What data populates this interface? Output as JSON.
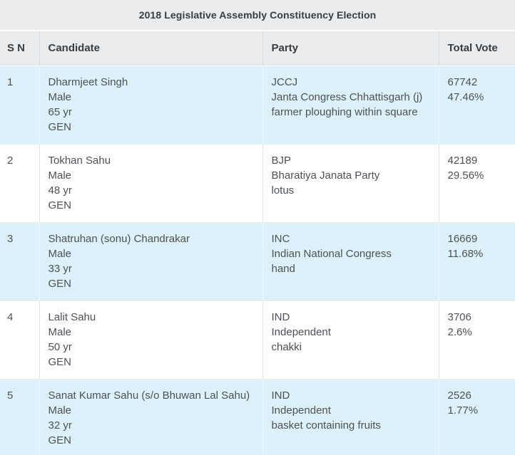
{
  "title": "2018 Legislative Assembly Constituency Election",
  "columns": {
    "sn": "S N",
    "candidate": "Candidate",
    "party": "Party",
    "total_vote": "Total Vote"
  },
  "colors": {
    "header_bg": "#e9ebed",
    "header_text": "#383d43",
    "body_text": "#4c5157",
    "highlight_row_bg": "#ddf1fb"
  },
  "rows": [
    {
      "sn": "1",
      "candidate": {
        "name": "Dharmjeet Singh",
        "gender": "Male",
        "age": "65 yr",
        "category": "GEN"
      },
      "party": {
        "abbr": "JCCJ",
        "name": "Janta Congress Chhattisgarh (j)",
        "symbol": "farmer ploughing within square"
      },
      "vote": {
        "total": "67742",
        "percent": "47.46%"
      }
    },
    {
      "sn": "2",
      "candidate": {
        "name": "Tokhan Sahu",
        "gender": "Male",
        "age": "48 yr",
        "category": "GEN"
      },
      "party": {
        "abbr": "BJP",
        "name": "Bharatiya Janata Party",
        "symbol": "lotus"
      },
      "vote": {
        "total": "42189",
        "percent": "29.56%"
      }
    },
    {
      "sn": "3",
      "candidate": {
        "name": "Shatruhan (sonu) Chandrakar",
        "gender": "Male",
        "age": "33 yr",
        "category": "GEN"
      },
      "party": {
        "abbr": "INC",
        "name": "Indian National Congress",
        "symbol": "hand"
      },
      "vote": {
        "total": "16669",
        "percent": "11.68%"
      }
    },
    {
      "sn": "4",
      "candidate": {
        "name": "Lalit Sahu",
        "gender": "Male",
        "age": "50 yr",
        "category": "GEN"
      },
      "party": {
        "abbr": "IND",
        "name": "Independent",
        "symbol": "chakki"
      },
      "vote": {
        "total": "3706",
        "percent": "2.6%"
      }
    },
    {
      "sn": "5",
      "candidate": {
        "name": "Sanat Kumar Sahu (s/o Bhuwan Lal Sahu)",
        "gender": "Male",
        "age": "32 yr",
        "category": "GEN"
      },
      "party": {
        "abbr": "IND",
        "name": "Independent",
        "symbol": "basket containing fruits"
      },
      "vote": {
        "total": "2526",
        "percent": "1.77%"
      }
    }
  ],
  "chart_data": {
    "type": "table",
    "title": "2018 Legislative Assembly Constituency Election",
    "columns": [
      "S N",
      "Candidate",
      "Party",
      "Total Vote"
    ],
    "candidates": [
      "Dharmjeet Singh",
      "Tokhan Sahu",
      "Shatruhan (sonu) Chandrakar",
      "Lalit Sahu",
      "Sanat Kumar Sahu (s/o Bhuwan Lal Sahu)"
    ],
    "parties": [
      "JCCJ",
      "BJP",
      "INC",
      "IND",
      "IND"
    ],
    "votes": [
      67742,
      42189,
      16669,
      3706,
      2526
    ],
    "vote_share_percent": [
      47.46,
      29.56,
      11.68,
      2.6,
      1.77
    ]
  }
}
